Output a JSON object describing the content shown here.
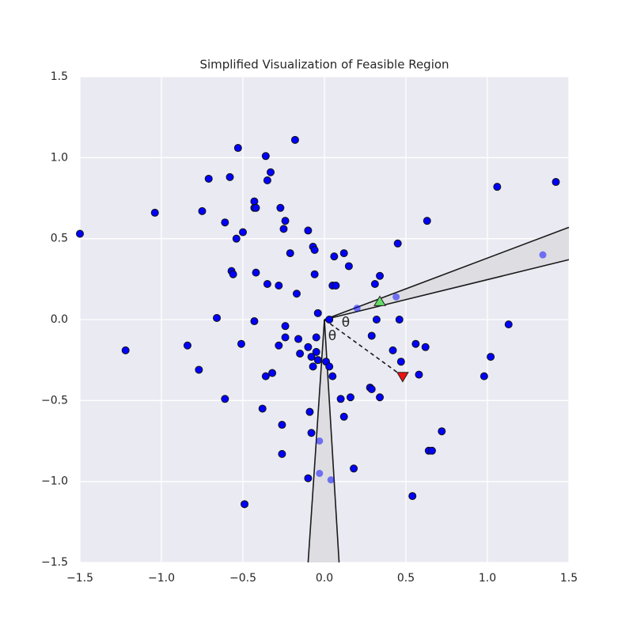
{
  "chart_data": {
    "type": "scatter",
    "title": "Simplified Visualization of Feasible Region",
    "xlim": [
      -1.5,
      1.5
    ],
    "ylim": [
      -1.5,
      1.5
    ],
    "xticks": [
      {
        "value": -1.5,
        "label": "−1.5"
      },
      {
        "value": -1.0,
        "label": "−1.0"
      },
      {
        "value": -0.5,
        "label": "−0.5"
      },
      {
        "value": 0.0,
        "label": "0.0"
      },
      0.5,
      {
        "value": 1.0,
        "label": "1.0"
      },
      1.5
    ],
    "yticks": [
      {
        "value": -1.5,
        "label": "−1.5"
      },
      {
        "value": -1.0,
        "label": "−1.0"
      },
      {
        "value": -0.5,
        "label": "−0.5"
      },
      {
        "value": 0.0,
        "label": "0.0"
      },
      0.5,
      {
        "value": 1.0,
        "label": "1.0"
      },
      1.5
    ],
    "grid": true,
    "regions": [
      {
        "x": [
          0,
          1.5,
          1.5
        ],
        "y": [
          0,
          0.57,
          0.37
        ],
        "color": "#dcdce0"
      },
      {
        "x": [
          0,
          -0.1,
          0.09
        ],
        "y": [
          0,
          -1.5,
          -1.5
        ],
        "color": "#dcdce0"
      }
    ],
    "series": [
      {
        "color": "#0000ff",
        "opacity": 1,
        "x": [
          -1.5,
          -1.04,
          -1.22,
          -0.84,
          -0.77,
          -0.75,
          -0.71,
          -0.58,
          -0.53,
          -0.36,
          -0.18,
          -0.33,
          -0.35,
          -0.43,
          -0.43,
          -0.42,
          -0.61,
          -0.54,
          -0.5,
          -0.57,
          -0.56,
          -0.66,
          -0.51,
          -0.61,
          -0.42,
          -0.35,
          -0.28,
          -0.27,
          -0.24,
          -0.25,
          -0.21,
          -0.17,
          -0.1,
          -0.07,
          -0.06,
          -0.06,
          -0.04,
          0.06,
          0.12,
          0.15,
          0.05,
          0.07,
          -0.43,
          -0.24,
          -0.24,
          -0.28,
          -0.16,
          -0.1,
          -0.05,
          -0.15,
          -0.08,
          -0.05,
          -0.04,
          -0.07,
          -0.32,
          -0.36,
          0.01,
          0.03,
          0.05,
          0.03,
          -0.38,
          -0.26,
          -0.26,
          -0.09,
          -0.08,
          -0.1,
          -0.49,
          0.1,
          0.16,
          0.12,
          0.18,
          0.28,
          0.29,
          0.34,
          0.29,
          0.32,
          0.31,
          0.34,
          0.45,
          0.46,
          0.42,
          0.47,
          0.56,
          0.62,
          0.58,
          0.63,
          0.72,
          0.64,
          0.66,
          0.54,
          0.98,
          1.02,
          1.13,
          1.06,
          1.42
        ],
        "values": [
          0.53,
          0.66,
          -0.19,
          -0.16,
          -0.31,
          0.67,
          0.87,
          0.88,
          1.06,
          1.01,
          1.11,
          0.91,
          0.86,
          0.73,
          0.69,
          0.69,
          0.6,
          0.5,
          0.54,
          0.3,
          0.28,
          0.01,
          -0.15,
          -0.49,
          0.29,
          0.22,
          0.21,
          0.69,
          0.61,
          0.56,
          0.41,
          0.16,
          0.55,
          0.45,
          0.43,
          0.28,
          0.04,
          0.39,
          0.41,
          0.33,
          0.21,
          0.21,
          -0.01,
          -0.04,
          -0.11,
          -0.16,
          -0.12,
          -0.17,
          -0.11,
          -0.21,
          -0.23,
          -0.2,
          -0.25,
          -0.29,
          -0.33,
          -0.35,
          -0.26,
          -0.29,
          -0.35,
          0.0,
          -0.55,
          -0.65,
          -0.83,
          -0.57,
          -0.7,
          -0.98,
          -1.14,
          -0.49,
          -0.48,
          -0.6,
          -0.92,
          -0.42,
          -0.43,
          -0.48,
          -0.1,
          0.0,
          0.22,
          0.27,
          0.47,
          0.0,
          -0.19,
          -0.26,
          -0.15,
          -0.17,
          -0.34,
          0.61,
          -0.69,
          -0.81,
          -0.81,
          -1.09,
          -0.35,
          -0.23,
          -0.03,
          0.82,
          0.85
        ]
      },
      {
        "color": "#0000ff",
        "opacity": 0.5,
        "x": [
          1.34,
          0.44,
          0.2,
          -0.03,
          -0.03,
          0.04
        ],
        "values": [
          0.4,
          0.14,
          0.07,
          -0.75,
          -0.95,
          -0.99
        ]
      }
    ],
    "segments": [
      {
        "x": [
          0,
          0.48
        ],
        "y": [
          0,
          -0.35
        ]
      }
    ],
    "markers": [
      {
        "x": 0.34,
        "y": 0.11,
        "shape": "triangle-up",
        "color": "#66dd66"
      },
      {
        "x": 0.48,
        "y": -0.35,
        "shape": "triangle-down",
        "color": "#ee1111"
      }
    ],
    "annotations": [
      "θ",
      "θ"
    ]
  }
}
